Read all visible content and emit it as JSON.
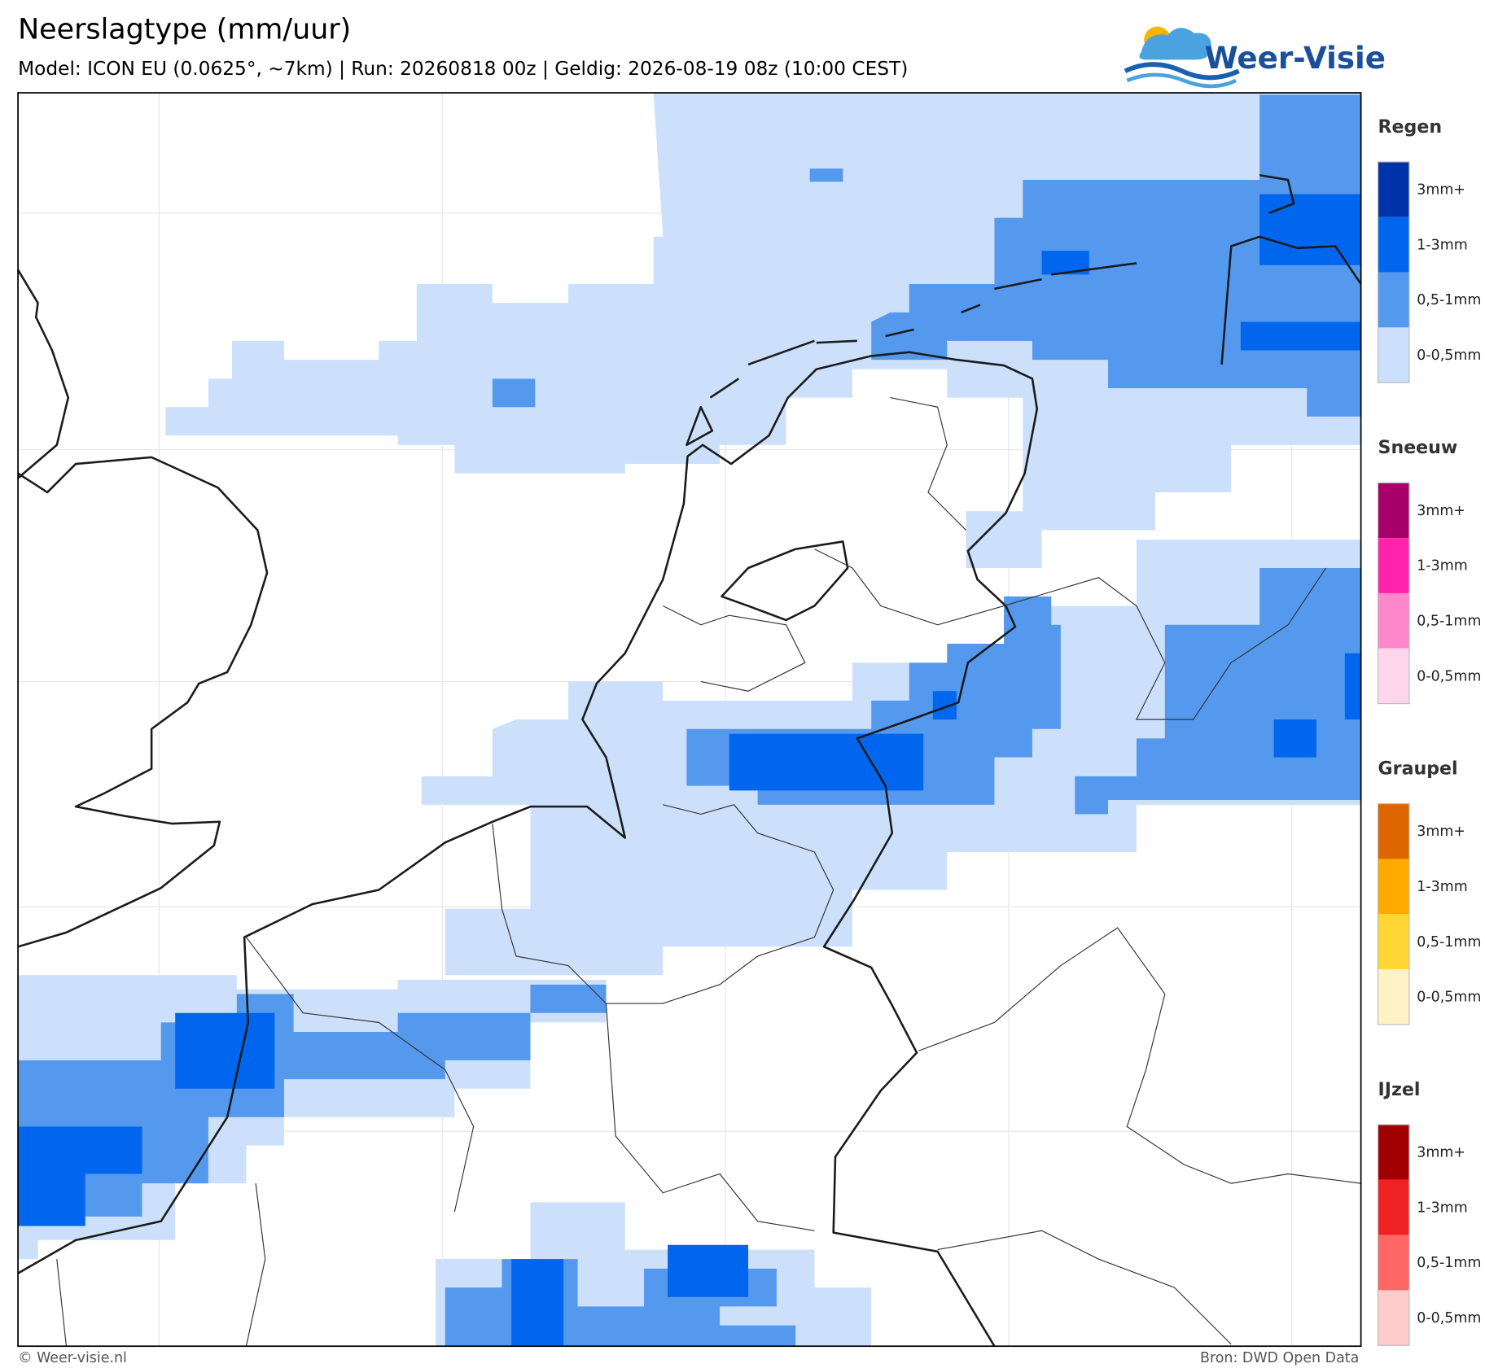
{
  "header": {
    "title": "Neerslagtype (mm/uur)",
    "subtitle": "Model: ICON EU (0.0625°, ~7km)  |  Run: 20260818 00z  |  Geldig: 2026-08-19 08z (10:00 CEST)"
  },
  "logo": {
    "text": "Weer-Visie"
  },
  "legend": {
    "groups": [
      {
        "title": "Regen",
        "items": [
          {
            "label": "3mm+",
            "color": "#0033aa"
          },
          {
            "label": "1-3mm",
            "color": "#0066ee"
          },
          {
            "label": "0,5-1mm",
            "color": "#5599ee"
          },
          {
            "label": "0-0,5mm",
            "color": "#cce0fb"
          }
        ]
      },
      {
        "title": "Sneeuw",
        "items": [
          {
            "label": "3mm+",
            "color": "#a8006a"
          },
          {
            "label": "1-3mm",
            "color": "#ff22aa"
          },
          {
            "label": "0,5-1mm",
            "color": "#ff88cc"
          },
          {
            "label": "0-0,5mm",
            "color": "#ffd6ec"
          }
        ]
      },
      {
        "title": "Graupel",
        "items": [
          {
            "label": "3mm+",
            "color": "#dd6600"
          },
          {
            "label": "1-3mm",
            "color": "#ffaa00"
          },
          {
            "label": "0,5-1mm",
            "color": "#ffd633"
          },
          {
            "label": "0-0,5mm",
            "color": "#fff2c4"
          }
        ]
      },
      {
        "title": "IJzel",
        "items": [
          {
            "label": "3mm+",
            "color": "#a00000"
          },
          {
            "label": "1-3mm",
            "color": "#ee2222"
          },
          {
            "label": "0,5-1mm",
            "color": "#ff6666"
          },
          {
            "label": "0-0,5mm",
            "color": "#ffcccc"
          }
        ]
      }
    ]
  },
  "footer": {
    "left": "© Weer-visie.nl",
    "right": "Bron: DWD Open Data"
  }
}
